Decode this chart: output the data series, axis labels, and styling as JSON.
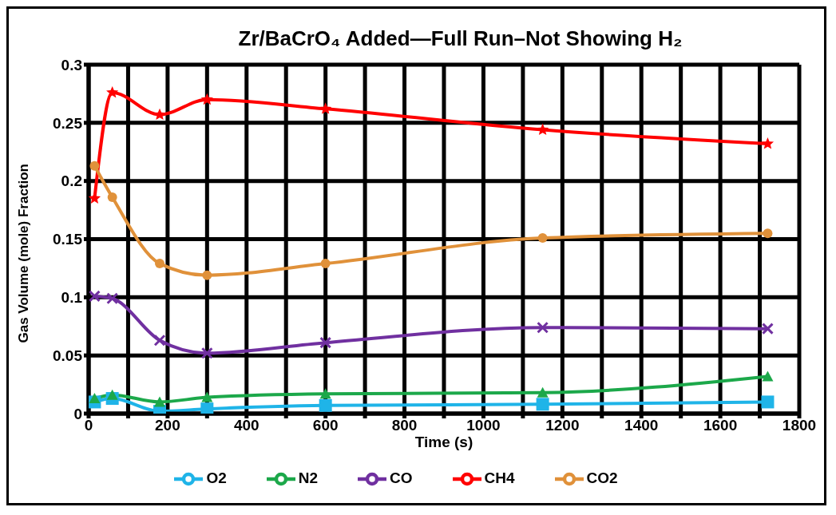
{
  "chart_data": {
    "type": "line",
    "title": "Zr/BaCrO₄ Added—Full Run–Not Showing H₂",
    "xlabel": "Time (s)",
    "ylabel": "Gas Volume (mole) Fraction",
    "x": [
      15,
      60,
      180,
      300,
      600,
      1150,
      1720
    ],
    "series": [
      {
        "name": "O2",
        "color": "#1fb4e8",
        "marker": "square",
        "values": [
          0.01,
          0.013,
          0.002,
          0.004,
          0.007,
          0.008,
          0.01
        ]
      },
      {
        "name": "N2",
        "color": "#1ca84a",
        "marker": "triangle",
        "values": [
          0.013,
          0.016,
          0.01,
          0.014,
          0.017,
          0.018,
          0.032
        ]
      },
      {
        "name": "CO",
        "color": "#7030a0",
        "marker": "cross",
        "values": [
          0.101,
          0.099,
          0.063,
          0.052,
          0.061,
          0.074,
          0.073
        ]
      },
      {
        "name": "CH4",
        "color": "#ff0000",
        "marker": "star",
        "values": [
          0.185,
          0.276,
          0.257,
          0.27,
          0.262,
          0.244,
          0.232
        ]
      },
      {
        "name": "CO2",
        "color": "#e0913a",
        "marker": "circle",
        "values": [
          0.213,
          0.186,
          0.129,
          0.119,
          0.129,
          0.151,
          0.155
        ]
      }
    ],
    "xlim": [
      0,
      1800
    ],
    "xticks": [
      0,
      {
        "value": 100,
        "label": null
      },
      200,
      {
        "value": 300,
        "label": null
      },
      400,
      {
        "value": 500,
        "label": null
      },
      600,
      {
        "value": 700,
        "label": null
      },
      800,
      {
        "value": 900,
        "label": null
      },
      1000,
      {
        "value": 1100,
        "label": null
      },
      1200,
      {
        "value": 1300,
        "label": null
      },
      1400,
      {
        "value": 1500,
        "label": null
      },
      1600,
      {
        "value": 1700,
        "label": null
      },
      1800
    ],
    "ylim": [
      0,
      0.3
    ],
    "yticks": [
      0,
      0.05,
      0.1,
      0.15,
      0.2,
      0.25,
      0.3
    ],
    "grid": true,
    "legend": "bottom",
    "line_style": "solid"
  }
}
